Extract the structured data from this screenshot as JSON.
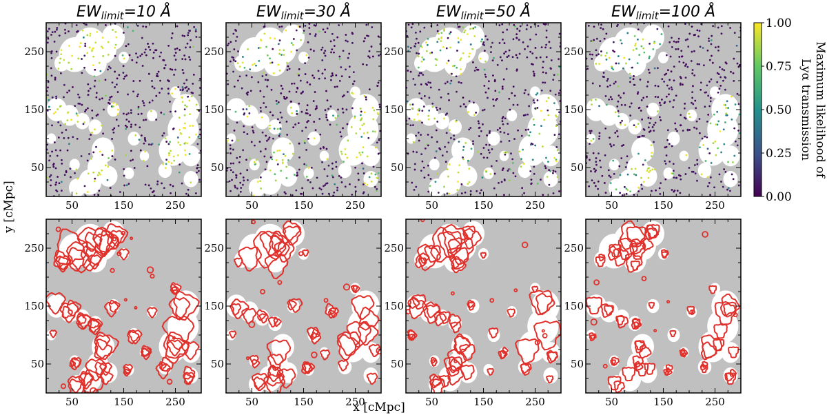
{
  "chart_data": {
    "type": "scatter",
    "title_prefix": "EW",
    "title_subscript": "limit",
    "columns": [
      {
        "ew_limit": "10",
        "unit": "Å"
      },
      {
        "ew_limit": "30",
        "unit": "Å"
      },
      {
        "ew_limit": "50",
        "unit": "Å"
      },
      {
        "ew_limit": "100",
        "unit": "Å"
      }
    ],
    "xlabel": "x [cMpc]",
    "ylabel": "y [cMpc]",
    "xlim": [
      0,
      300
    ],
    "ylim": [
      0,
      300
    ],
    "x_ticks": [
      50,
      150,
      250
    ],
    "y_ticks": [
      50,
      150,
      250
    ],
    "colorbar": {
      "label_line1": "Maximum likelihood of",
      "label_line2": "Lyα transmission",
      "range": [
        0.0,
        1.0
      ],
      "ticks": [
        "1.00",
        "0.75",
        "0.50",
        "0.25",
        "0.00"
      ],
      "colormap": "viridis"
    },
    "rows": [
      {
        "name": "top",
        "content": "galaxy points colored by maximum likelihood Lyα transmission over ionized (white) / neutral (grey) map"
      },
      {
        "name": "bottom",
        "content": "recovered ionized-region contours (red) over ionized (white) / neutral (grey) map"
      }
    ],
    "background_colors": {
      "neutral": "#c0c0c0",
      "ionized": "#ffffff",
      "contour": "#e0302b"
    },
    "bubbles": [
      {
        "cx": 55,
        "cy": 245,
        "r": 30
      },
      {
        "cx": 85,
        "cy": 260,
        "r": 32
      },
      {
        "cx": 110,
        "cy": 255,
        "r": 26
      },
      {
        "cx": 130,
        "cy": 275,
        "r": 22
      },
      {
        "cx": 95,
        "cy": 230,
        "r": 22
      },
      {
        "cx": 30,
        "cy": 230,
        "r": 14
      },
      {
        "cx": 150,
        "cy": 240,
        "r": 10
      },
      {
        "cx": 20,
        "cy": 150,
        "r": 20
      },
      {
        "cx": 45,
        "cy": 140,
        "r": 18
      },
      {
        "cx": 70,
        "cy": 130,
        "r": 14
      },
      {
        "cx": 95,
        "cy": 120,
        "r": 13
      },
      {
        "cx": 130,
        "cy": 150,
        "r": 12
      },
      {
        "cx": 110,
        "cy": 80,
        "r": 22
      },
      {
        "cx": 100,
        "cy": 50,
        "r": 20
      },
      {
        "cx": 85,
        "cy": 25,
        "r": 22
      },
      {
        "cx": 120,
        "cy": 35,
        "r": 18
      },
      {
        "cx": 60,
        "cy": 15,
        "r": 16
      },
      {
        "cx": 55,
        "cy": 55,
        "r": 10
      },
      {
        "cx": 170,
        "cy": 100,
        "r": 12
      },
      {
        "cx": 205,
        "cy": 140,
        "r": 10
      },
      {
        "cx": 270,
        "cy": 150,
        "r": 27
      },
      {
        "cx": 265,
        "cy": 115,
        "r": 30
      },
      {
        "cx": 245,
        "cy": 80,
        "r": 27
      },
      {
        "cx": 280,
        "cy": 70,
        "r": 18
      },
      {
        "cx": 230,
        "cy": 45,
        "r": 13
      },
      {
        "cx": 280,
        "cy": 30,
        "r": 14
      },
      {
        "cx": 250,
        "cy": 180,
        "r": 10
      },
      {
        "cx": 160,
        "cy": 40,
        "r": 10
      },
      {
        "cx": 190,
        "cy": 70,
        "r": 9
      },
      {
        "cx": 10,
        "cy": 100,
        "r": 9
      }
    ],
    "galaxy_count_per_panel": 520
  }
}
